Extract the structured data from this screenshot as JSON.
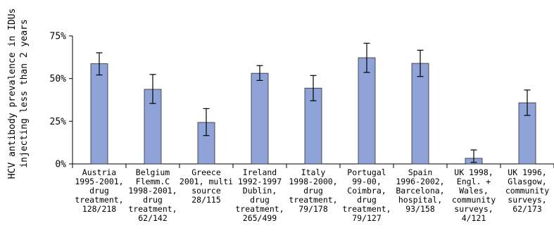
{
  "chart_data": {
    "type": "bar",
    "ylabel": [
      "HCV antibody prevalence in IDUs",
      "injecting less than 2 years"
    ],
    "xlabel": "",
    "ylim": [
      0,
      75
    ],
    "yticks": [
      "0%",
      "25%",
      "50%",
      "75%"
    ],
    "categories": [
      [
        "Austria",
        "1995-2001,",
        "drug",
        "treatment,",
        "128/218"
      ],
      [
        "Belgium",
        "Flemm.C",
        "1998-2001,",
        "drug",
        "treatment,",
        "62/142"
      ],
      [
        "Greece",
        "2001, multi",
        "source",
        "28/115"
      ],
      [
        "Ireland",
        "1992-1997",
        "Dublin,",
        "drug",
        "treatment,",
        "265/499"
      ],
      [
        "Italy",
        "1998-2000,",
        "drug",
        "treatment,",
        "79/178"
      ],
      [
        "Portugal",
        "99-00,",
        "Coimbra,",
        "drug",
        "treatment,",
        "79/127"
      ],
      [
        "Spain",
        "1996-2002,",
        "Barcelona,",
        "hospital,",
        "93/158"
      ],
      [
        "UK 1998,",
        "Engl. +",
        "Wales,",
        "community",
        "surveys,",
        "4/121"
      ],
      [
        "UK 1996,",
        "Glasgow,",
        "community",
        "surveys,",
        "62/173"
      ]
    ],
    "values": [
      58.7,
      43.7,
      24.3,
      53.1,
      44.4,
      62.2,
      58.9,
      3.3,
      35.8
    ],
    "error_low": [
      52.1,
      35.4,
      16.6,
      48.9,
      37.0,
      53.6,
      51.2,
      0.9,
      28.4
    ],
    "error_high": [
      65.1,
      52.4,
      32.4,
      57.6,
      51.8,
      70.7,
      66.6,
      8.2,
      43.3
    ],
    "bar_color": "#8fa3d8",
    "bar_stroke": "#2b2b2b",
    "grid": false,
    "legend": "none"
  }
}
